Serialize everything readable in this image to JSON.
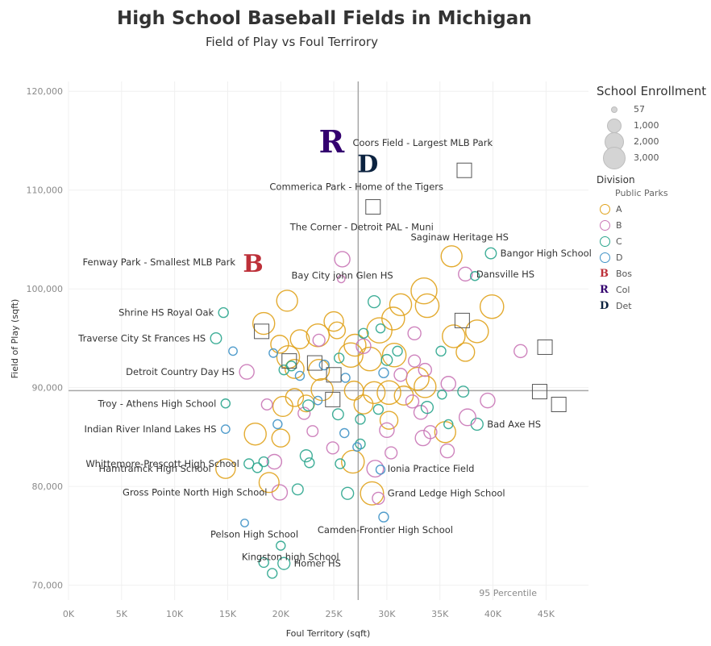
{
  "header": {
    "title": "High School Baseball Fields in Michigan",
    "subtitle": "Field of Play vs Foul Terrirory"
  },
  "legend": {
    "size_title": "School Enrollment",
    "size_items": [
      "57",
      "1,000",
      "2,000",
      "3,000"
    ],
    "division_title": "Division",
    "parks_header": "Public Parks",
    "divisions": [
      {
        "label": "A",
        "color": "#e0a21b"
      },
      {
        "label": "B",
        "color": "#c976b6"
      },
      {
        "label": "C",
        "color": "#2aa58d"
      },
      {
        "label": "D",
        "color": "#3f92c6"
      }
    ],
    "teams": [
      {
        "label": "Bos",
        "glyph": "B",
        "color": "#bd3039"
      },
      {
        "label": "Col",
        "glyph": "R",
        "color": "#33006f"
      },
      {
        "label": "Det",
        "glyph": "D",
        "color": "#0c2340"
      }
    ]
  },
  "chart_data": {
    "type": "scatter",
    "title": "High School Baseball Fields in Michigan",
    "subtitle": "Field of Play vs Foul Terrirory",
    "xlabel": "Foul Territory (sqft)",
    "ylabel": "Field of Play (sqft)",
    "xlim": [
      0,
      49000
    ],
    "ylim": [
      68500,
      121000
    ],
    "x_ticks": [
      0,
      5000,
      10000,
      15000,
      20000,
      25000,
      30000,
      35000,
      40000,
      45000
    ],
    "x_tick_labels": [
      "0K",
      "5K",
      "10K",
      "15K",
      "20K",
      "25K",
      "30K",
      "35K",
      "40K",
      "45K"
    ],
    "y_ticks": [
      70000,
      80000,
      90000,
      100000,
      110000,
      120000
    ],
    "y_tick_labels": [
      "70,000",
      "80,000",
      "90,000",
      "100,000",
      "110,000",
      "120,000"
    ],
    "grid": true,
    "reference_lines": {
      "x": 27300,
      "y": 89700
    },
    "reference_label": "95 Percentile",
    "mlb_parks": [
      {
        "name": "Coors Field - Largest MLB Park",
        "team": "Col",
        "x": 24800,
        "y": 114800
      },
      {
        "name": "Commerica Park - Home of the Tigers",
        "team": "Det",
        "x": 28200,
        "y": 112800
      },
      {
        "name": "Fenway Park - Smallest MLB Park",
        "team": "Bos",
        "x": 17400,
        "y": 102700
      }
    ],
    "public_parks": [
      {
        "name": "The Corner - Detroit PAL - Muni",
        "x": 28700,
        "y": 108300
      },
      {
        "x": 37300,
        "y": 112000
      },
      {
        "x": 37100,
        "y": 96800
      },
      {
        "x": 18200,
        "y": 95700
      },
      {
        "x": 20800,
        "y": 92700
      },
      {
        "x": 23200,
        "y": 92500
      },
      {
        "x": 25000,
        "y": 91300
      },
      {
        "x": 24900,
        "y": 88800
      },
      {
        "x": 44900,
        "y": 94100
      },
      {
        "x": 44400,
        "y": 89600
      },
      {
        "x": 46200,
        "y": 88300
      }
    ],
    "schools": [
      {
        "name": "Saginaw Heritage HS",
        "div": "A",
        "x": 36100,
        "y": 103300,
        "e": 1800
      },
      {
        "name": "Bangor High School",
        "div": "C",
        "x": 39800,
        "y": 103600,
        "e": 300
      },
      {
        "name": "Dansville HS",
        "div": "B",
        "x": 37400,
        "y": 101500,
        "e": 600
      },
      {
        "div": "C",
        "x": 38300,
        "y": 101300,
        "e": 150
      },
      {
        "name": "Bay City john Glen HS",
        "div": "B",
        "x": 25800,
        "y": 103000,
        "e": 800
      },
      {
        "div": "B",
        "x": 25700,
        "y": 101000,
        "e": 70
      },
      {
        "name": "Shrine HS Royal Oak",
        "div": "C",
        "x": 14600,
        "y": 97600,
        "e": 200
      },
      {
        "name": "Traverse City St Frances HS",
        "div": "C",
        "x": 13900,
        "y": 95000,
        "e": 300
      },
      {
        "name": "Detroit Country Day HS",
        "div": "B",
        "x": 16800,
        "y": 91600,
        "e": 700
      },
      {
        "name": "Troy - Athens High School",
        "div": "C",
        "x": 14800,
        "y": 88400,
        "e": 150
      },
      {
        "name": "Indian River Inland Lakes HS",
        "div": "D",
        "x": 14800,
        "y": 85800,
        "e": 120
      },
      {
        "name": "Whittemore-Prescott High School",
        "div": "C",
        "x": 17000,
        "y": 82300,
        "e": 200
      },
      {
        "name": "Hamtramck High School",
        "div": "A",
        "x": 14800,
        "y": 81800,
        "e": 1500
      },
      {
        "name": "Gross Pointe North High School",
        "div": "B",
        "x": 19900,
        "y": 79400,
        "e": 800
      },
      {
        "name": "Pelson High School",
        "div": "D",
        "x": 16600,
        "y": 76300,
        "e": 80
      },
      {
        "name": "Kingston high School",
        "div": "C",
        "x": 20000,
        "y": 74000,
        "e": 150
      },
      {
        "name": "Homer HS",
        "div": "C",
        "x": 20300,
        "y": 72200,
        "e": 400
      },
      {
        "div": "C",
        "x": 18400,
        "y": 72300,
        "e": 200
      },
      {
        "div": "C",
        "x": 19200,
        "y": 71200,
        "e": 200
      },
      {
        "name": "Camden-Frontier High School",
        "div": "D",
        "x": 29700,
        "y": 76900,
        "e": 200
      },
      {
        "name": "Grand Ledge High School",
        "div": "A",
        "x": 28600,
        "y": 79300,
        "e": 2300
      },
      {
        "div": "B",
        "x": 29200,
        "y": 78800,
        "e": 400
      },
      {
        "name": "Ionia Practice Field",
        "div": "B",
        "x": 28900,
        "y": 81800,
        "e": 1000
      },
      {
        "name": "Bad Axe HS",
        "div": "C",
        "x": 38500,
        "y": 86300,
        "e": 400
      },
      {
        "div": "B",
        "x": 37600,
        "y": 87000,
        "e": 1000
      },
      {
        "div": "B",
        "x": 39500,
        "y": 88700,
        "e": 700
      },
      {
        "div": "B",
        "x": 42600,
        "y": 93700,
        "e": 500
      },
      {
        "div": "A",
        "x": 39900,
        "y": 98200,
        "e": 2400
      },
      {
        "div": "A",
        "x": 38500,
        "y": 95700,
        "e": 2200
      },
      {
        "div": "A",
        "x": 37400,
        "y": 93600,
        "e": 1300
      },
      {
        "div": "A",
        "x": 36300,
        "y": 95200,
        "e": 2200
      },
      {
        "div": "A",
        "x": 33500,
        "y": 99800,
        "e": 3000
      },
      {
        "div": "A",
        "x": 33800,
        "y": 98300,
        "e": 2400
      },
      {
        "div": "A",
        "x": 31300,
        "y": 98400,
        "e": 2000
      },
      {
        "div": "A",
        "x": 30600,
        "y": 97000,
        "e": 2200
      },
      {
        "div": "A",
        "x": 29300,
        "y": 95800,
        "e": 2800
      },
      {
        "div": "A",
        "x": 27000,
        "y": 94300,
        "e": 2000
      },
      {
        "div": "A",
        "x": 25000,
        "y": 96700,
        "e": 1500
      },
      {
        "div": "A",
        "x": 25300,
        "y": 95800,
        "e": 1000
      },
      {
        "div": "A",
        "x": 23500,
        "y": 95300,
        "e": 2200
      },
      {
        "div": "A",
        "x": 21800,
        "y": 94900,
        "e": 1400
      },
      {
        "div": "A",
        "x": 20600,
        "y": 98800,
        "e": 1800
      },
      {
        "div": "A",
        "x": 18400,
        "y": 96500,
        "e": 2000
      },
      {
        "div": "A",
        "x": 19900,
        "y": 94400,
        "e": 1200
      },
      {
        "div": "A",
        "x": 20700,
        "y": 93100,
        "e": 2200
      },
      {
        "div": "A",
        "x": 21300,
        "y": 91900,
        "e": 1400
      },
      {
        "div": "A",
        "x": 23600,
        "y": 91800,
        "e": 1800
      },
      {
        "div": "A",
        "x": 26600,
        "y": 93300,
        "e": 2600
      },
      {
        "div": "A",
        "x": 28400,
        "y": 92900,
        "e": 2400
      },
      {
        "div": "A",
        "x": 30700,
        "y": 93300,
        "e": 2400
      },
      {
        "div": "A",
        "x": 32900,
        "y": 90900,
        "e": 2200
      },
      {
        "div": "A",
        "x": 33600,
        "y": 90100,
        "e": 2000
      },
      {
        "div": "A",
        "x": 31600,
        "y": 89200,
        "e": 1400
      },
      {
        "div": "A",
        "x": 30200,
        "y": 89500,
        "e": 2400
      },
      {
        "div": "A",
        "x": 28800,
        "y": 89500,
        "e": 2000
      },
      {
        "div": "A",
        "x": 26900,
        "y": 89700,
        "e": 1400
      },
      {
        "div": "A",
        "x": 23900,
        "y": 89800,
        "e": 2000
      },
      {
        "div": "A",
        "x": 21300,
        "y": 89000,
        "e": 1200
      },
      {
        "div": "A",
        "x": 20200,
        "y": 88100,
        "e": 1600
      },
      {
        "div": "A",
        "x": 22400,
        "y": 88400,
        "e": 1000
      },
      {
        "div": "A",
        "x": 27800,
        "y": 88300,
        "e": 1400
      },
      {
        "div": "A",
        "x": 30200,
        "y": 86700,
        "e": 1200
      },
      {
        "div": "A",
        "x": 35500,
        "y": 85500,
        "e": 1800
      },
      {
        "div": "A",
        "x": 17600,
        "y": 85300,
        "e": 2000
      },
      {
        "div": "A",
        "x": 20000,
        "y": 84900,
        "e": 1200
      },
      {
        "div": "A",
        "x": 26800,
        "y": 82500,
        "e": 2200
      },
      {
        "div": "A",
        "x": 18900,
        "y": 80400,
        "e": 1600
      },
      {
        "div": "B",
        "x": 23600,
        "y": 94800,
        "e": 400
      },
      {
        "div": "B",
        "x": 27800,
        "y": 94200,
        "e": 700
      },
      {
        "div": "B",
        "x": 32600,
        "y": 95500,
        "e": 500
      },
      {
        "div": "B",
        "x": 32600,
        "y": 92700,
        "e": 400
      },
      {
        "div": "B",
        "x": 33600,
        "y": 91800,
        "e": 500
      },
      {
        "div": "B",
        "x": 35800,
        "y": 90400,
        "e": 700
      },
      {
        "div": "B",
        "x": 32400,
        "y": 88600,
        "e": 500
      },
      {
        "div": "B",
        "x": 33200,
        "y": 87500,
        "e": 600
      },
      {
        "div": "B",
        "x": 30000,
        "y": 85700,
        "e": 700
      },
      {
        "div": "B",
        "x": 33400,
        "y": 84900,
        "e": 800
      },
      {
        "div": "B",
        "x": 34100,
        "y": 85500,
        "e": 500
      },
      {
        "div": "B",
        "x": 35700,
        "y": 83600,
        "e": 600
      },
      {
        "div": "B",
        "x": 30400,
        "y": 83400,
        "e": 400
      },
      {
        "div": "B",
        "x": 24900,
        "y": 83900,
        "e": 400
      },
      {
        "div": "B",
        "x": 19400,
        "y": 82500,
        "e": 700
      },
      {
        "div": "B",
        "x": 23000,
        "y": 85600,
        "e": 300
      },
      {
        "div": "B",
        "x": 22200,
        "y": 87400,
        "e": 400
      },
      {
        "div": "B",
        "x": 18700,
        "y": 88300,
        "e": 300
      },
      {
        "div": "B",
        "x": 31300,
        "y": 91300,
        "e": 500
      },
      {
        "div": "C",
        "x": 28800,
        "y": 98700,
        "e": 400
      },
      {
        "div": "C",
        "x": 29400,
        "y": 96000,
        "e": 150
      },
      {
        "div": "C",
        "x": 31000,
        "y": 93700,
        "e": 200
      },
      {
        "div": "C",
        "x": 30000,
        "y": 92800,
        "e": 300
      },
      {
        "div": "C",
        "x": 25500,
        "y": 93000,
        "e": 200
      },
      {
        "div": "C",
        "x": 21000,
        "y": 92200,
        "e": 200
      },
      {
        "div": "C",
        "x": 20300,
        "y": 91800,
        "e": 200
      },
      {
        "div": "C",
        "x": 22600,
        "y": 88200,
        "e": 300
      },
      {
        "div": "C",
        "x": 25400,
        "y": 87300,
        "e": 300
      },
      {
        "div": "C",
        "x": 27500,
        "y": 86800,
        "e": 200
      },
      {
        "div": "C",
        "x": 29200,
        "y": 87800,
        "e": 200
      },
      {
        "div": "C",
        "x": 33800,
        "y": 88000,
        "e": 400
      },
      {
        "div": "C",
        "x": 37200,
        "y": 89600,
        "e": 300
      },
      {
        "div": "C",
        "x": 35800,
        "y": 86300,
        "e": 150
      },
      {
        "div": "C",
        "x": 22400,
        "y": 83100,
        "e": 400
      },
      {
        "div": "C",
        "x": 22700,
        "y": 82400,
        "e": 200
      },
      {
        "div": "C",
        "x": 17800,
        "y": 81900,
        "e": 200
      },
      {
        "div": "C",
        "x": 18400,
        "y": 82500,
        "e": 200
      },
      {
        "div": "C",
        "x": 21600,
        "y": 79700,
        "e": 300
      },
      {
        "div": "C",
        "x": 25600,
        "y": 82300,
        "e": 200
      },
      {
        "div": "C",
        "x": 27500,
        "y": 84300,
        "e": 200
      },
      {
        "div": "C",
        "x": 26300,
        "y": 79300,
        "e": 400
      },
      {
        "div": "C",
        "x": 27800,
        "y": 95500,
        "e": 200
      },
      {
        "div": "C",
        "x": 35100,
        "y": 93700,
        "e": 200
      },
      {
        "div": "C",
        "x": 35200,
        "y": 89300,
        "e": 150
      },
      {
        "div": "D",
        "x": 19300,
        "y": 93500,
        "e": 120
      },
      {
        "div": "D",
        "x": 15500,
        "y": 93700,
        "e": 120
      },
      {
        "div": "D",
        "x": 21800,
        "y": 91200,
        "e": 150
      },
      {
        "div": "D",
        "x": 24100,
        "y": 92300,
        "e": 200
      },
      {
        "div": "D",
        "x": 29700,
        "y": 91500,
        "e": 200
      },
      {
        "div": "D",
        "x": 26100,
        "y": 91000,
        "e": 150
      },
      {
        "div": "D",
        "x": 23500,
        "y": 88700,
        "e": 120
      },
      {
        "div": "D",
        "x": 19700,
        "y": 86300,
        "e": 150
      },
      {
        "div": "D",
        "x": 26000,
        "y": 85400,
        "e": 150
      },
      {
        "div": "D",
        "x": 27200,
        "y": 84000,
        "e": 120
      },
      {
        "div": "D",
        "x": 29400,
        "y": 81700,
        "e": 150
      }
    ]
  }
}
